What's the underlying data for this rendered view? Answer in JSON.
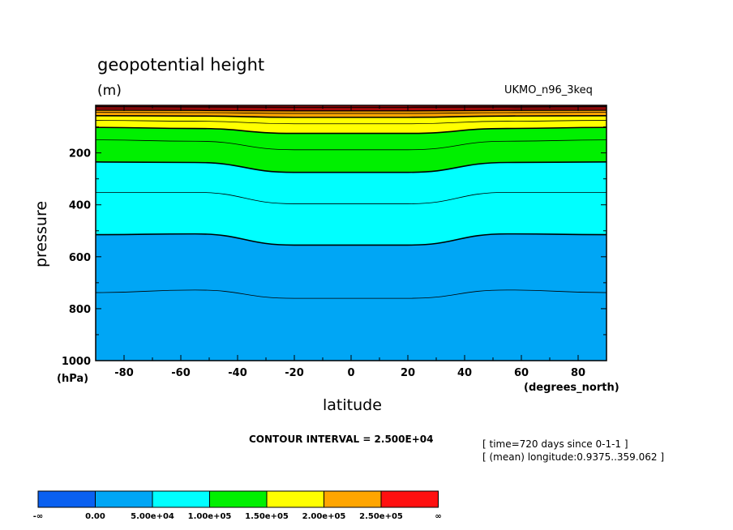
{
  "chart_data": {
    "type": "contour",
    "title": "geopotential height",
    "units": "(m)",
    "experiment": "UKMO_n96_3keq",
    "xlabel": "latitude",
    "xunits": "(degrees_north)",
    "ylabel": "pressure",
    "yunits": "(hPa)",
    "xlim": [
      -90,
      90
    ],
    "ylim": [
      1000,
      17
    ],
    "x_ticks": [
      -80,
      -60,
      -40,
      -20,
      0,
      20,
      40,
      60,
      80
    ],
    "x_tick_labels": [
      "-80",
      "-60",
      "-40",
      "-20",
      "0",
      "20",
      "40",
      "60",
      "80"
    ],
    "y_ticks": [
      200,
      400,
      600,
      800,
      1000
    ],
    "y_tick_labels": [
      "200",
      "400",
      "600",
      "800",
      "1000"
    ],
    "contour_interval_text": "CONTOUR INTERVAL = 2.500E+04",
    "time_note": "[ time=720 days since 0-1-1 ]",
    "longitude_note": "[ (mean) longitude:0.9375..359.062 ]",
    "contour_lines": [
      {
        "level": 25000,
        "profile": [
          {
            "lat": -90,
            "p": 738
          },
          {
            "lat": -55,
            "p": 728
          },
          {
            "lat": -20,
            "p": 760
          },
          {
            "lat": 20,
            "p": 760
          },
          {
            "lat": 55,
            "p": 728
          },
          {
            "lat": 90,
            "p": 738
          }
        ]
      },
      {
        "level": 50000,
        "profile": [
          {
            "lat": -90,
            "p": 515
          },
          {
            "lat": -55,
            "p": 512
          },
          {
            "lat": -20,
            "p": 555
          },
          {
            "lat": 20,
            "p": 555
          },
          {
            "lat": 55,
            "p": 512
          },
          {
            "lat": 90,
            "p": 515
          }
        ]
      },
      {
        "level": 75000,
        "profile": [
          {
            "lat": -90,
            "p": 352
          },
          {
            "lat": -55,
            "p": 352
          },
          {
            "lat": -20,
            "p": 396
          },
          {
            "lat": 20,
            "p": 396
          },
          {
            "lat": 55,
            "p": 352
          },
          {
            "lat": 90,
            "p": 352
          }
        ]
      },
      {
        "level": 100000,
        "profile": [
          {
            "lat": -90,
            "p": 235
          },
          {
            "lat": -55,
            "p": 237
          },
          {
            "lat": -20,
            "p": 275
          },
          {
            "lat": 20,
            "p": 275
          },
          {
            "lat": 55,
            "p": 237
          },
          {
            "lat": 90,
            "p": 235
          }
        ]
      },
      {
        "level": 125000,
        "profile": [
          {
            "lat": -90,
            "p": 150
          },
          {
            "lat": -55,
            "p": 155
          },
          {
            "lat": -20,
            "p": 188
          },
          {
            "lat": 20,
            "p": 188
          },
          {
            "lat": 55,
            "p": 155
          },
          {
            "lat": 90,
            "p": 150
          }
        ]
      },
      {
        "level": 150000,
        "profile": [
          {
            "lat": -90,
            "p": 102
          },
          {
            "lat": -55,
            "p": 106
          },
          {
            "lat": -20,
            "p": 125
          },
          {
            "lat": 20,
            "p": 125
          },
          {
            "lat": 55,
            "p": 106
          },
          {
            "lat": 90,
            "p": 102
          }
        ]
      },
      {
        "level": 175000,
        "profile": [
          {
            "lat": -90,
            "p": 75
          },
          {
            "lat": -55,
            "p": 78
          },
          {
            "lat": -20,
            "p": 88
          },
          {
            "lat": 20,
            "p": 88
          },
          {
            "lat": 55,
            "p": 78
          },
          {
            "lat": 90,
            "p": 75
          }
        ]
      },
      {
        "level": 200000,
        "profile": [
          {
            "lat": -90,
            "p": 57
          },
          {
            "lat": -55,
            "p": 58
          },
          {
            "lat": -20,
            "p": 63
          },
          {
            "lat": 20,
            "p": 63
          },
          {
            "lat": 55,
            "p": 58
          },
          {
            "lat": 90,
            "p": 57
          }
        ]
      },
      {
        "level": 225000,
        "profile": [
          {
            "lat": -90,
            "p": 44
          },
          {
            "lat": -55,
            "p": 45
          },
          {
            "lat": -20,
            "p": 48
          },
          {
            "lat": 20,
            "p": 48
          },
          {
            "lat": 55,
            "p": 45
          },
          {
            "lat": 90,
            "p": 44
          }
        ]
      },
      {
        "level": 250000,
        "profile": [
          {
            "lat": -90,
            "p": 35
          },
          {
            "lat": -55,
            "p": 36
          },
          {
            "lat": -20,
            "p": 38
          },
          {
            "lat": 20,
            "p": 38
          },
          {
            "lat": 55,
            "p": 36
          },
          {
            "lat": 90,
            "p": 35
          }
        ]
      },
      {
        "level": 275000,
        "profile": [
          {
            "lat": -90,
            "p": 28
          },
          {
            "lat": -55,
            "p": 29
          },
          {
            "lat": -20,
            "p": 30
          },
          {
            "lat": 20,
            "p": 30
          },
          {
            "lat": 55,
            "p": 29
          },
          {
            "lat": 90,
            "p": 28
          }
        ]
      },
      {
        "level": 300000,
        "profile": [
          {
            "lat": -90,
            "p": 22
          },
          {
            "lat": -55,
            "p": 23
          },
          {
            "lat": -20,
            "p": 24
          },
          {
            "lat": 20,
            "p": 24
          },
          {
            "lat": 55,
            "p": 23
          },
          {
            "lat": 90,
            "p": 22
          }
        ]
      }
    ],
    "colorbar": {
      "bins": [
        {
          "color": "#0a60f0"
        },
        {
          "color": "#00a6f5"
        },
        {
          "color": "#00ffff"
        },
        {
          "color": "#00f000"
        },
        {
          "color": "#ffff00"
        },
        {
          "color": "#ffa500"
        },
        {
          "color": "#ff1010"
        }
      ],
      "labels": [
        "-∞",
        "0.00",
        "5.00e+04",
        "1.00e+05",
        "1.50e+05",
        "2.00e+05",
        "2.50e+05",
        "∞"
      ],
      "level_colors": [
        {
          "min": 0,
          "max": 50000,
          "color": "#00a6f5"
        },
        {
          "min": 50000,
          "max": 100000,
          "color": "#00ffff"
        },
        {
          "min": 100000,
          "max": 150000,
          "color": "#00f000"
        },
        {
          "min": 150000,
          "max": 200000,
          "color": "#ffff00"
        },
        {
          "min": 200000,
          "max": 250000,
          "color": "#ffa500"
        },
        {
          "min": 250000,
          "max": 300000,
          "color": "#ff1010"
        }
      ]
    }
  }
}
